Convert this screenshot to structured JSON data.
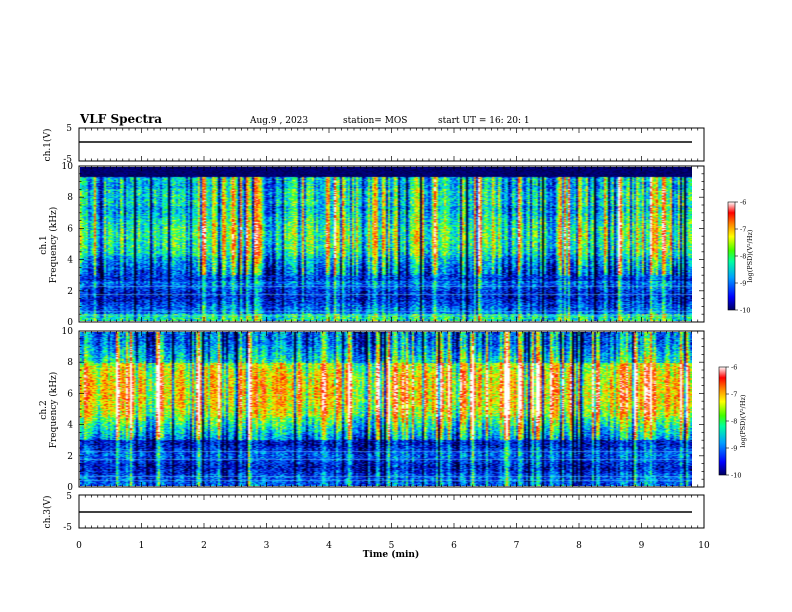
{
  "header": {
    "title": "VLF Spectra",
    "date": "Aug.9  , 2023",
    "station": "station= MOS",
    "start": "start  UT  =   16: 20: 1"
  },
  "chart_data": [
    {
      "type": "line",
      "panel": "ch1-waveform",
      "ylabel": "ch.1(V)",
      "ylim": [
        -5,
        5
      ],
      "yticks": [
        "5",
        "-5"
      ],
      "series": [
        {
          "values": [
            0,
            0
          ]
        }
      ],
      "x": [
        0,
        9.85
      ]
    },
    {
      "type": "heatmap",
      "panel": "ch1-spectrogram",
      "ylabel": "ch.1\nFrequency (kHz)",
      "ylabel_line1": "ch.1",
      "ylabel_line2": "Frequency (kHz)",
      "ylim": [
        0,
        10
      ],
      "yticks": [
        "0",
        "2",
        "4",
        "6",
        "8",
        "10"
      ],
      "colorbar": {
        "label": "log(PSD)(V²/Hz)",
        "range": [
          -10,
          -6
        ],
        "ticks": [
          "-6",
          "-7",
          "-8",
          "-9",
          "-10"
        ]
      },
      "description_levels": {
        "low_band_kHz": [
          0,
          3.5
        ],
        "high_band_kHz": [
          4.5,
          9.3
        ]
      }
    },
    {
      "type": "heatmap",
      "panel": "ch2-spectrogram",
      "ylabel": "ch.2\nFrequency (kHz)",
      "ylabel_line1": "ch.2",
      "ylabel_line2": "Frequency (kHz)",
      "ylim": [
        0,
        10
      ],
      "yticks": [
        "0",
        "2",
        "4",
        "6",
        "8",
        "10"
      ],
      "colorbar": {
        "label": "log(PSD)(V²/Hz)",
        "range": [
          -10,
          -6
        ],
        "ticks": [
          "-6",
          "-7",
          "-8",
          "-9",
          "-10"
        ]
      }
    },
    {
      "type": "line",
      "panel": "ch3-waveform",
      "ylabel": "ch.3(V)",
      "ylim": [
        -5,
        5
      ],
      "yticks": [
        "5",
        "-5"
      ],
      "series": [
        {
          "values": [
            0,
            0
          ]
        }
      ],
      "x": [
        0,
        9.85
      ]
    }
  ],
  "xaxis": {
    "label": "Time  (min)",
    "xlim": [
      0,
      10
    ],
    "ticks": [
      "0",
      "1",
      "2",
      "3",
      "4",
      "5",
      "6",
      "7",
      "8",
      "9",
      "10"
    ]
  },
  "colors": {
    "colormap": [
      "#00007f",
      "#0000ff",
      "#0080ff",
      "#00ffff",
      "#80ff80",
      "#ffff00",
      "#ff8000",
      "#ff0000",
      "#ffffff"
    ],
    "background": "#000000"
  }
}
